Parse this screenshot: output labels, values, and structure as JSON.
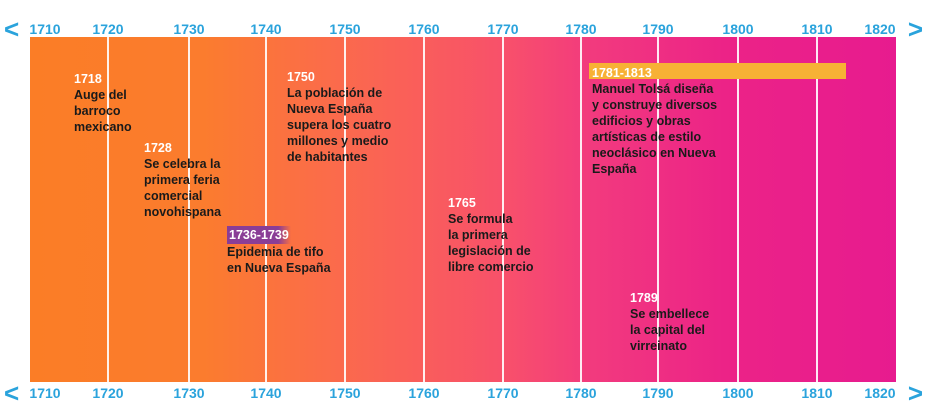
{
  "timeline": {
    "start_year": 1710,
    "end_year": 1820,
    "ticks": [
      "1710",
      "1720",
      "1730",
      "1740",
      "1750",
      "1760",
      "1770",
      "1780",
      "1790",
      "1800",
      "1810",
      "1820"
    ],
    "arrow_left": "<",
    "arrow_right": ">",
    "events": [
      {
        "id": "1718",
        "year_label": "1718",
        "desc": "Auge del\nbarroco\nmexicano"
      },
      {
        "id": "1728",
        "year_label": "1728",
        "desc": "Se celebra la\nprimera feria\ncomercial\nnovohispana"
      },
      {
        "id": "1736",
        "year_label": "1736-1739",
        "desc": "Epidemia de tifo\nen Nueva España",
        "badge_color": "#8a3d96"
      },
      {
        "id": "1750",
        "year_label": "1750",
        "desc": "La población de\nNueva España\nsupera los cuatro\nmillones y medio\nde habitantes"
      },
      {
        "id": "1765",
        "year_label": "1765",
        "desc": "Se formula\nla primera\nlegislación de\nlibre comercio"
      },
      {
        "id": "1781",
        "year_label": "1781-1813",
        "desc": "Manuel Tolsá diseña\ny construye diversos\nedificios y obras\nartísticas de estilo\nneoclásico en Nueva\nEspaña",
        "range_start": 1781,
        "range_end": 1813,
        "bar_color": "#f7b135"
      },
      {
        "id": "1789",
        "year_label": "1789",
        "desc": "Se embellece\nla capital del\nvirreinato"
      }
    ]
  }
}
